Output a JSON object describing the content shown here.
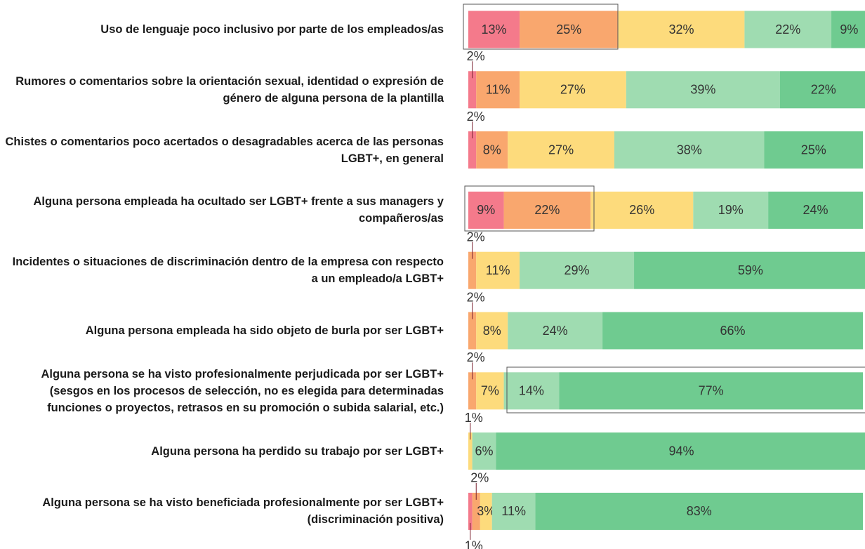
{
  "chart_data": {
    "type": "stacked-bar-horizontal",
    "categories": [
      "Uso de lenguaje poco inclusivo por parte de los empleados/as",
      "Rumores o comentarios sobre la orientación sexual, identidad o expresión de género de alguna persona de la plantilla",
      "Chistes o comentarios poco acertados o desagradables acerca de las personas LGBT+, en general",
      "Alguna persona empleada ha ocultado ser LGBT+ frente a sus managers y compañeros/as",
      "Incidentes o situaciones de discriminación dentro de la empresa con respecto a un empleado/a LGBT+",
      "Alguna persona empleada ha sido objeto de burla por ser LGBT+",
      "Alguna persona se ha visto profesionalmente perjudicada por ser LGBT+ (sesgos en los procesos de selección, no es elegida para determinadas funciones o proyectos, retrasos en su promoción o subida salarial, etc.)",
      "Alguna persona ha perdido su trabajo por ser LGBT+",
      "Alguna persona se ha visto beneficiada profesionalmente por ser LGBT+ (discriminación positiva)"
    ],
    "series": [
      {
        "color": "#f47a8b",
        "values": [
          13,
          2,
          2,
          9,
          null,
          null,
          null,
          null,
          1
        ],
        "value_labels": [
          "13%",
          "2%",
          "2%",
          "9%",
          null,
          null,
          null,
          null,
          "1%"
        ]
      },
      {
        "color": "#f9a76e",
        "values": [
          25,
          11,
          8,
          22,
          2,
          2,
          2,
          null,
          2
        ],
        "value_labels": [
          "25%",
          "11%",
          "8%",
          "22%",
          "2%",
          "2%",
          "2%",
          null,
          "2%"
        ]
      },
      {
        "color": "#fddb7c",
        "values": [
          32,
          27,
          27,
          26,
          11,
          8,
          7,
          1,
          3
        ],
        "value_labels": [
          "32%",
          "27%",
          "27%",
          "26%",
          "11%",
          "8%",
          "7%",
          "1%",
          "3%"
        ]
      },
      {
        "color": "#9fdcb1",
        "values": [
          22,
          39,
          38,
          19,
          29,
          24,
          14,
          6,
          11
        ],
        "value_labels": [
          "22%",
          "39%",
          "38%",
          "19%",
          "29%",
          "24%",
          "14%",
          "6%",
          "11%"
        ]
      },
      {
        "color": "#6fcb90",
        "values": [
          9,
          22,
          25,
          24,
          59,
          66,
          77,
          94,
          83
        ],
        "value_labels": [
          "9%",
          "22%",
          "25%",
          "24%",
          "59%",
          "66%",
          "77%",
          "94%",
          "83%"
        ]
      }
    ]
  }
}
